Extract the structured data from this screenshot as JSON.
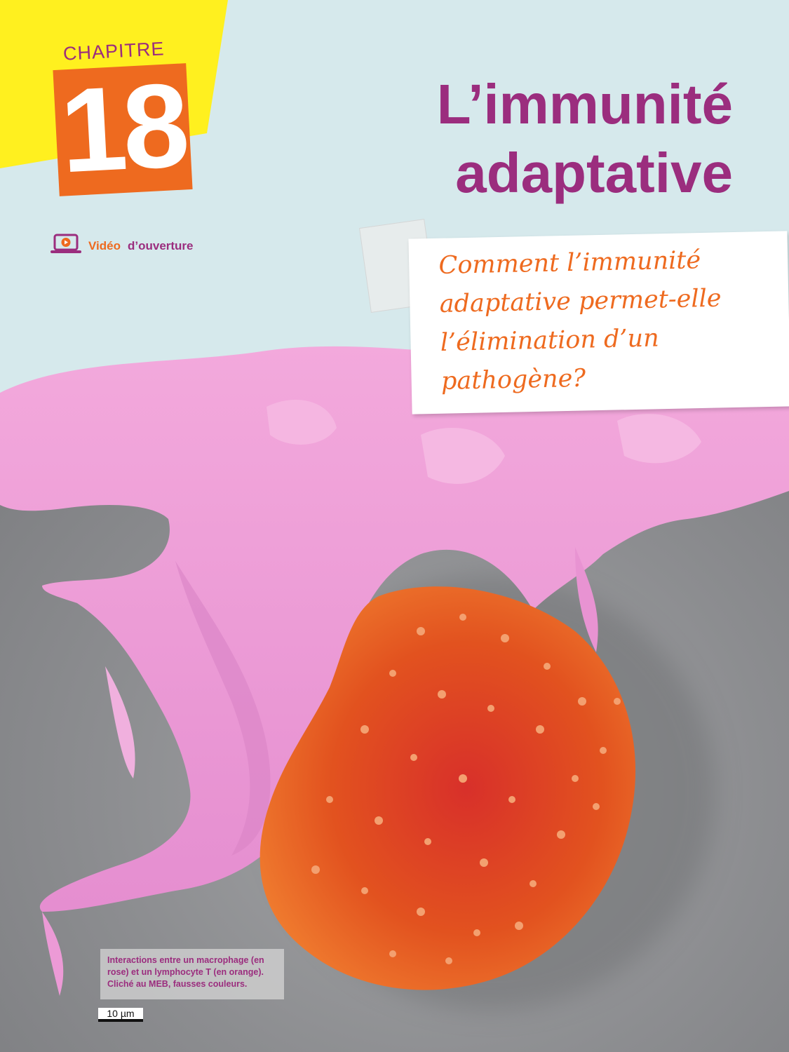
{
  "chapter": {
    "label": "CHAPITRE",
    "number": "18"
  },
  "title": {
    "line1": "L’immunité",
    "line2": "adaptative"
  },
  "video": {
    "word1": "Vidéo",
    "word2": "d’ouverture",
    "icon": "video-laptop-icon"
  },
  "question": {
    "line1": "Comment l’immunité",
    "line2": "adaptative permet-elle",
    "line3": "l’élimination d’un",
    "line4": "pathogène?"
  },
  "caption": {
    "line1": "Interactions entre un macrophage (en",
    "line2": "rose) et un lymphocyte T (en orange).",
    "line3": "Cliché au MEB, fausses couleurs."
  },
  "scale": {
    "label": "10 µm"
  },
  "colors": {
    "accent_purple": "#9b2d7e",
    "accent_orange": "#ee6a1f",
    "yellow": "#fff01f",
    "sky": "#d6e9ec",
    "macrophage_pink": "#e99ad6",
    "lymphocyte_orange": "#e5551c"
  }
}
